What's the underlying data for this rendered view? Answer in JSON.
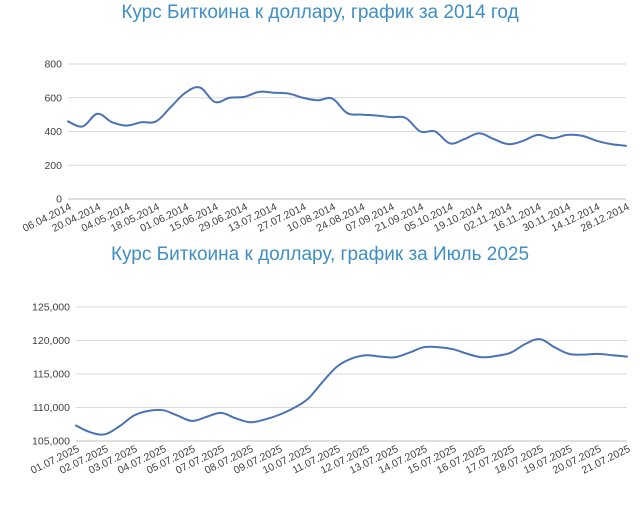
{
  "chart_data": [
    {
      "type": "line",
      "title": "Курс Биткоина к доллару, график за 2014 год",
      "xlabel": "",
      "ylabel": "",
      "ylim": [
        0,
        800
      ],
      "yticks": [
        "0",
        "200",
        "400",
        "600",
        "800"
      ],
      "grid": true,
      "categories": [
        "06.04.2014",
        "20.04.2014",
        "04.05.2014",
        "18.05.2014",
        "01.06.2014",
        "15.06.2014",
        "29.06.2014",
        "13.07.2014",
        "27.07.2014",
        "10.08.2014",
        "24.08.2014",
        "07.09.2014",
        "21.09.2014",
        "05.10.2014",
        "19.10.2014",
        "02.11.2014",
        "16.11.2014",
        "30.11.2014",
        "14.12.2014",
        "28.12.2014"
      ],
      "series": [
        {
          "color": "#4a73b5",
          "x": [
            0,
            0.5,
            1,
            1.5,
            2,
            2.5,
            3,
            3.5,
            4,
            4.5,
            5,
            5.5,
            6,
            6.5,
            7,
            7.5,
            8,
            8.5,
            9,
            9.5,
            10,
            10.5,
            11,
            11.5,
            12,
            12.5,
            13,
            13.5,
            14,
            14.5,
            15,
            15.5,
            16,
            16.5,
            17,
            17.5,
            18,
            18.5,
            19
          ],
          "values": [
            460,
            430,
            505,
            455,
            435,
            455,
            460,
            545,
            630,
            660,
            575,
            600,
            605,
            635,
            630,
            625,
            600,
            585,
            595,
            510,
            500,
            495,
            485,
            480,
            400,
            400,
            330,
            355,
            390,
            355,
            325,
            345,
            380,
            360,
            380,
            375,
            345,
            325,
            315
          ]
        }
      ]
    },
    {
      "type": "line",
      "title": "Курс Биткоина к доллару, график за Июль 2025",
      "xlabel": "",
      "ylabel": "",
      "ylim": [
        105000,
        125000
      ],
      "yticks": [
        "105,000",
        "110,000",
        "115,000",
        "120,000",
        "125,000"
      ],
      "grid": true,
      "categories": [
        "01.07.2025",
        "02.07.2025",
        "03.07.2025",
        "04.07.2025",
        "05.07.2025",
        "07.07.2025",
        "08.07.2025",
        "09.07.2025",
        "10.07.2025",
        "11.07.2025",
        "12.07.2025",
        "13.07.2025",
        "14.07.2025",
        "15.07.2025",
        "16.07.2025",
        "17.07.2025",
        "18.07.2025",
        "19.07.2025",
        "20.07.2025",
        "21.07.2025"
      ],
      "series": [
        {
          "color": "#4a73b5",
          "x": [
            0,
            0.5,
            1,
            1.5,
            2,
            2.5,
            3,
            3.5,
            4,
            4.5,
            5,
            5.5,
            6,
            6.5,
            7,
            7.5,
            8,
            8.5,
            9,
            9.5,
            10,
            10.5,
            11,
            11.5,
            12,
            12.5,
            13,
            13.5,
            14,
            14.5,
            15,
            15.5,
            16,
            16.5,
            17,
            17.5,
            18,
            18.5,
            19
          ],
          "values": [
            107300,
            106300,
            106000,
            107200,
            108800,
            109500,
            109600,
            108800,
            108000,
            108600,
            109200,
            108400,
            107800,
            108200,
            108900,
            109900,
            111300,
            113800,
            116100,
            117300,
            117800,
            117600,
            117500,
            118200,
            119000,
            119000,
            118700,
            118000,
            117500,
            117700,
            118200,
            119500,
            120200,
            119000,
            118000,
            117900,
            118000,
            117800,
            117600
          ]
        }
      ]
    }
  ]
}
